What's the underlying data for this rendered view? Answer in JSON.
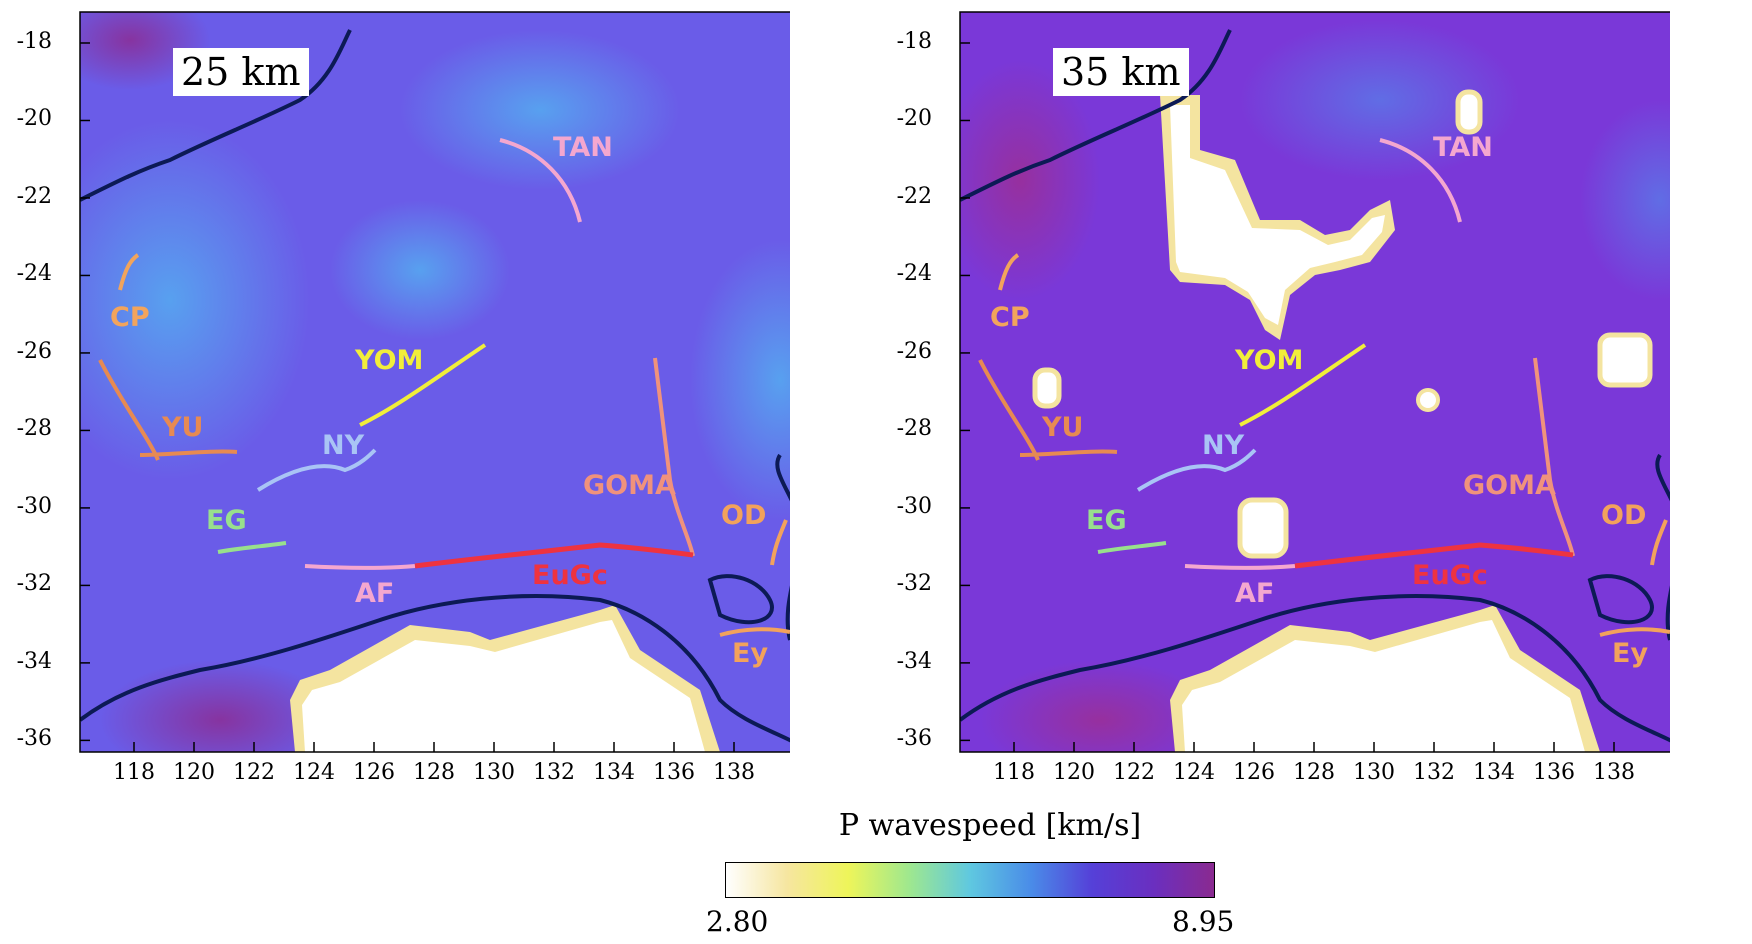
{
  "panels": [
    {
      "depth_label": "25 km"
    },
    {
      "depth_label": "35 km"
    }
  ],
  "y_ticks": [
    "-18",
    "-20",
    "-22",
    "-24",
    "-26",
    "-28",
    "-30",
    "-32",
    "-34",
    "-36"
  ],
  "x_ticks": [
    "118",
    "120",
    "122",
    "124",
    "126",
    "128",
    "130",
    "132",
    "134",
    "136",
    "138"
  ],
  "features": [
    {
      "label": "TAN",
      "color": "#f4a7cf"
    },
    {
      "label": "CP",
      "color": "#f2a45c"
    },
    {
      "label": "YOM",
      "color": "#f1ee3a"
    },
    {
      "label": "YU",
      "color": "#e78a52"
    },
    {
      "label": "NY",
      "color": "#a9c4f5"
    },
    {
      "label": "GOMA",
      "color": "#f0927c"
    },
    {
      "label": "EG",
      "color": "#98e08c"
    },
    {
      "label": "OD",
      "color": "#f2a25c"
    },
    {
      "label": "AF",
      "color": "#f4a7cf"
    },
    {
      "label": "EuGc",
      "color": "#ee3340"
    },
    {
      "label": "Ey",
      "color": "#f2a25c"
    }
  ],
  "colorbar": {
    "title": "P wavespeed [km/s]",
    "min": "2.80",
    "max": "8.95",
    "colors": [
      "#ffffff",
      "#f6e6a0",
      "#eef55a",
      "#9fe88e",
      "#5fc8e0",
      "#4a8ce8",
      "#5540d8",
      "#6a2fc0",
      "#8a2a90"
    ]
  },
  "fill_colors": {
    "left_base": "#6a5ce8",
    "right_base": "#7a38d8",
    "coast": "#0c1a55"
  }
}
